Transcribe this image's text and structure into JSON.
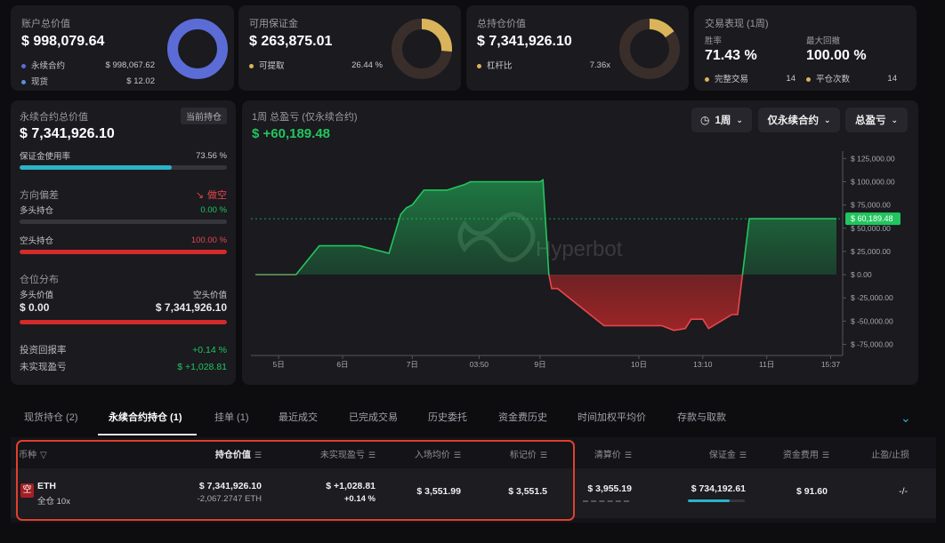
{
  "summary": {
    "account": {
      "title": "账户总价值",
      "value": "$ 998,079.64",
      "perp_label": "永续合约",
      "perp_value": "$ 998,067.62",
      "spot_label": "现货",
      "spot_value": "$ 12.02",
      "color": "#5b6cd6"
    },
    "margin": {
      "title": "可用保证金",
      "value": "$ 263,875.01",
      "withdraw_label": "可提取",
      "withdraw_pct": "26.44 %",
      "fraction": 0.2644,
      "color": "#d9b45a"
    },
    "position": {
      "title": "总持仓价值",
      "value": "$ 7,341,926.10",
      "leverage_label": "杠杆比",
      "leverage_value": "7.36x",
      "fraction": 0.15,
      "color": "#d9b45a"
    },
    "trading": {
      "title": "交易表现 (1周)",
      "winrate_label": "胜率",
      "winrate_value": "71.43 %",
      "drawdown_label": "最大回撤",
      "drawdown_value": "100.00 %",
      "completed_label": "完整交易",
      "completed_value": "14",
      "close_label": "平仓次数",
      "close_value": "14"
    }
  },
  "perp_panel": {
    "title": "永续合约总价值",
    "badge": "当前持仓",
    "value": "$ 7,341,926.10",
    "margin_usage_label": "保证金使用率",
    "margin_usage_value": "73.56 %",
    "margin_usage_fraction": 0.7356,
    "bias_label": "方向偏差",
    "bias_value": "做空",
    "long_label": "多头持仓",
    "long_value": "0.00 %",
    "long_fraction": 0.0,
    "short_label": "空头持仓",
    "short_value": "100.00 %",
    "short_fraction": 1.0,
    "dist_label": "仓位分布",
    "long_val_label": "多头价值",
    "short_val_label": "空头价值",
    "long_val": "$ 0.00",
    "short_val": "$ 7,341,926.10",
    "roi_label": "投资回报率",
    "roi_value": "+0.14 %",
    "upnl_label": "未实现盈亏",
    "upnl_value": "$ +1,028.81"
  },
  "pnl_chart": {
    "title": "1周 总盈亏 (仅永续合约)",
    "value": "$ +60,189.48",
    "watermark": "Hyperbot",
    "btn_period": "1周",
    "btn_scope": "仅永续合约",
    "btn_metric": "总盈亏",
    "current_label": "$ 60,189.48"
  },
  "chart_data": {
    "type": "area",
    "x_ticks": [
      "5日",
      "6日",
      "7日",
      "03:50",
      "9日",
      "10日",
      "13:10",
      "11日",
      "15:37"
    ],
    "y_ticks": [
      "$ 125,000.00",
      "$ 100,000.00",
      "$ 75,000.00",
      "$ 50,000.00",
      "$ 25,000.00",
      "$ 0.00",
      "$ -25,000.00",
      "$ -50,000.00",
      "$ -75,000.00"
    ],
    "ylim": [
      -87000,
      133000
    ],
    "x": [
      0,
      7,
      11,
      18,
      23,
      25,
      26,
      27,
      28,
      29,
      33,
      36,
      37,
      49,
      49.5,
      50.5,
      51,
      52,
      60,
      61,
      70,
      72,
      74,
      75,
      77,
      78,
      82,
      83,
      85,
      86,
      100
    ],
    "y": [
      0,
      0,
      31000,
      31000,
      23000,
      65000,
      72000,
      75000,
      83000,
      91000,
      91000,
      97000,
      100000,
      100000,
      102000,
      0,
      -15000,
      -15000,
      -55000,
      -55000,
      -55000,
      -60000,
      -58000,
      -48000,
      -48000,
      -58000,
      -43000,
      -43000,
      60189,
      60189,
      60189
    ],
    "xlim": [
      0,
      100
    ]
  },
  "tabs": [
    {
      "label": "现货持仓 (2)"
    },
    {
      "label": "永续合约持仓 (1)",
      "active": true
    },
    {
      "label": "挂单 (1)"
    },
    {
      "label": "最近成交"
    },
    {
      "label": "已完成交易"
    },
    {
      "label": "历史委托"
    },
    {
      "label": "资金费历史"
    },
    {
      "label": "时间加权平均价"
    },
    {
      "label": "存款与取款"
    }
  ],
  "table": {
    "headers": {
      "coin": "币种",
      "value": "持仓价值",
      "upnl": "未实现盈亏",
      "entry": "入场均价",
      "mark": "标记价",
      "liq": "清算价",
      "margin": "保证金",
      "funding": "资金费用",
      "tpsl": "止盈/止损"
    },
    "row": {
      "side": "空",
      "coin": "ETH",
      "mode": "全仓 10x",
      "value": "$ 7,341,926.10",
      "size": "-2,067.2747 ETH",
      "upnl": "$ +1,028.81",
      "upnl_pct": "+0.14 %",
      "entry": "$ 3,551.99",
      "mark": "$ 3,551.5",
      "liq": "$ 3,955.19",
      "margin": "$ 734,192.61",
      "funding": "$ 91.60",
      "tpsl": "-/-"
    }
  }
}
